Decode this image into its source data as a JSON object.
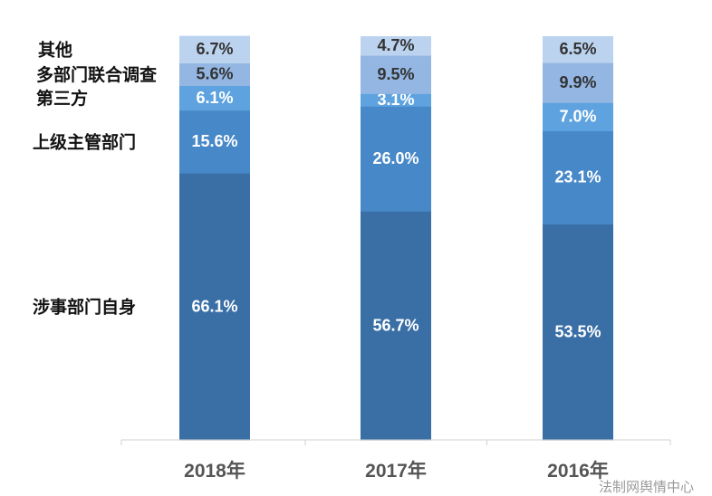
{
  "chart_data": {
    "type": "bar",
    "stacked": true,
    "title": "",
    "categories": [
      "2018年",
      "2017年",
      "2016年"
    ],
    "series": [
      {
        "name": "涉事部门自身",
        "values": [
          66.1,
          56.7,
          53.5
        ],
        "labels": [
          "66.1%",
          "56.7%",
          "53.5%"
        ],
        "color": "#3a6fa6",
        "label_color": "#ffffff"
      },
      {
        "name": "上级主管部门",
        "values": [
          15.6,
          26.0,
          23.1
        ],
        "labels": [
          "15.6%",
          "26.0%",
          "23.1%"
        ],
        "color": "#4788c8",
        "label_color": "#ffffff"
      },
      {
        "name": "第三方",
        "values": [
          6.1,
          3.1,
          7.0
        ],
        "labels": [
          "6.1%",
          "3.1%",
          "7.0%"
        ],
        "color": "#5ea3e0",
        "label_color": "#ffffff"
      },
      {
        "name": "多部门联合调查",
        "values": [
          5.6,
          9.5,
          9.9
        ],
        "labels": [
          "5.6%",
          "9.5%",
          "9.9%"
        ],
        "color": "#93b6e2",
        "label_color": "#333333"
      },
      {
        "name": "其他",
        "values": [
          6.7,
          4.7,
          6.5
        ],
        "labels": [
          "6.7%",
          "4.7%",
          "6.5%"
        ],
        "color": "#bcd3ef",
        "label_color": "#333333"
      }
    ],
    "ylim": [
      0,
      100
    ],
    "grid": false,
    "legend": "left"
  },
  "watermark": "法制网舆情中心"
}
